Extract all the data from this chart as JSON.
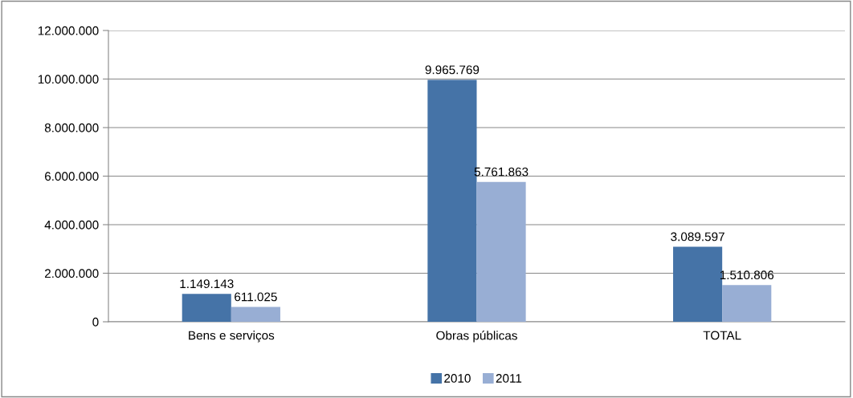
{
  "chart_data": {
    "type": "bar",
    "categories": [
      "Bens e serviços",
      "Obras públicas",
      "TOTAL"
    ],
    "series": [
      {
        "name": "2010",
        "color": "#4573a7",
        "values": [
          1149143,
          9965769,
          3089597
        ],
        "value_labels": [
          "1.149.143",
          "9.965.769",
          "3.089.597"
        ]
      },
      {
        "name": "2011",
        "color": "#98aed4",
        "values": [
          611025,
          5761863,
          1510806
        ],
        "value_labels": [
          "611.025",
          "5.761.863",
          "1.510.806"
        ]
      }
    ],
    "ylim": [
      0,
      12000000
    ],
    "yticks": [
      {
        "value": 0,
        "label": "0"
      },
      {
        "value": 2000000,
        "label": "2.000.000"
      },
      {
        "value": 4000000,
        "label": "4.000.000"
      },
      {
        "value": 6000000,
        "label": "6.000.000"
      },
      {
        "value": 8000000,
        "label": "8.000.000"
      },
      {
        "value": 10000000,
        "label": "10.000.000"
      },
      {
        "value": 12000000,
        "label": "12.000.000"
      }
    ],
    "grid": "y",
    "legend": "bottom"
  }
}
